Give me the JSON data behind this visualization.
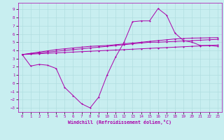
{
  "xlabel": "Windchill (Refroidissement éolien,°C)",
  "bg_color": "#c8eef0",
  "grid_color": "#b0dde0",
  "line_color": "#aa00aa",
  "x_hours": [
    0,
    1,
    2,
    3,
    4,
    5,
    6,
    7,
    8,
    9,
    10,
    11,
    12,
    13,
    14,
    15,
    16,
    17,
    18,
    19,
    20,
    21,
    22,
    23
  ],
  "temp_actual": [
    3.5,
    2.1,
    2.3,
    2.2,
    1.8,
    -0.5,
    -1.5,
    -2.5,
    -3.0,
    -1.7,
    1.0,
    3.2,
    5.0,
    7.5,
    7.6,
    7.6,
    9.1,
    8.3,
    6.1,
    5.2,
    5.0,
    4.6,
    4.6,
    4.5
  ],
  "line2": [
    3.5,
    3.55,
    3.6,
    3.65,
    3.7,
    3.75,
    3.8,
    3.85,
    3.9,
    3.95,
    4.0,
    4.05,
    4.1,
    4.15,
    4.2,
    4.25,
    4.3,
    4.35,
    4.4,
    4.45,
    4.5,
    4.55,
    4.6,
    4.65
  ],
  "line3": [
    3.5,
    3.6,
    3.7,
    3.8,
    3.9,
    4.0,
    4.1,
    4.2,
    4.3,
    4.4,
    4.5,
    4.6,
    4.7,
    4.8,
    4.9,
    5.0,
    5.0,
    5.05,
    5.1,
    5.15,
    5.2,
    5.25,
    5.3,
    5.35
  ],
  "line4": [
    3.5,
    3.65,
    3.8,
    3.95,
    4.1,
    4.2,
    4.3,
    4.4,
    4.5,
    4.55,
    4.6,
    4.7,
    4.8,
    4.9,
    5.0,
    5.1,
    5.2,
    5.3,
    5.4,
    5.45,
    5.5,
    5.52,
    5.54,
    5.56
  ],
  "ylim": [
    -3.5,
    9.8
  ],
  "xlim": [
    -0.5,
    23.5
  ],
  "yticks": [
    -3,
    -2,
    -1,
    0,
    1,
    2,
    3,
    4,
    5,
    6,
    7,
    8,
    9
  ],
  "xticks": [
    0,
    1,
    2,
    3,
    4,
    5,
    6,
    7,
    8,
    9,
    10,
    11,
    12,
    13,
    14,
    15,
    16,
    17,
    18,
    19,
    20,
    21,
    22,
    23
  ]
}
